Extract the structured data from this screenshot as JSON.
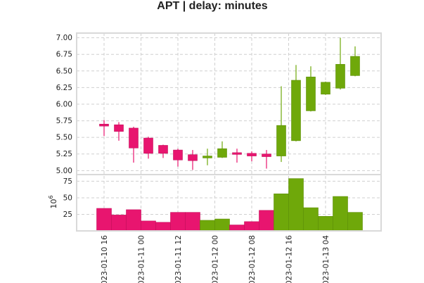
{
  "chart_data": {
    "type": "candlestick",
    "title": "APT | delay: minutes",
    "up_color": "#6fa80a",
    "down_color": "#e8156f",
    "grid": true,
    "price_axis": {
      "ylim": [
        4.94,
        7.07
      ],
      "ticks": [
        "5.00",
        "5.25",
        "5.50",
        "5.75",
        "6.00",
        "6.25",
        "6.50",
        "6.75",
        "7.00"
      ]
    },
    "volume_axis": {
      "ylabel": "10^6",
      "ylim": [
        0,
        85
      ],
      "ticks": [
        "25",
        "50",
        "75"
      ]
    },
    "x_tick_labels": [
      "023-01-10 16",
      "023-01-11 00",
      "023-01-11 12",
      "023-01-12 00",
      "023-01-12 08",
      "023-01-12 16",
      "023-01-13 04"
    ],
    "candles": [
      {
        "open": 5.7,
        "high": 5.76,
        "low": 5.52,
        "close": 5.67,
        "volume": 34
      },
      {
        "open": 5.69,
        "high": 5.73,
        "low": 5.45,
        "close": 5.59,
        "volume": 24
      },
      {
        "open": 5.64,
        "high": 5.66,
        "low": 5.12,
        "close": 5.34,
        "volume": 32
      },
      {
        "open": 5.49,
        "high": 5.51,
        "low": 5.18,
        "close": 5.26,
        "volume": 15
      },
      {
        "open": 5.38,
        "high": 5.39,
        "low": 5.19,
        "close": 5.26,
        "volume": 13
      },
      {
        "open": 5.31,
        "high": 5.33,
        "low": 5.06,
        "close": 5.16,
        "volume": 28
      },
      {
        "open": 5.24,
        "high": 5.31,
        "low": 5.01,
        "close": 5.15,
        "volume": 28
      },
      {
        "open": 5.19,
        "high": 5.33,
        "low": 5.08,
        "close": 5.22,
        "volume": 16
      },
      {
        "open": 5.2,
        "high": 5.44,
        "low": 5.19,
        "close": 5.33,
        "volume": 18
      },
      {
        "open": 5.27,
        "high": 5.33,
        "low": 5.12,
        "close": 5.25,
        "volume": 9
      },
      {
        "open": 5.26,
        "high": 5.29,
        "low": 5.14,
        "close": 5.22,
        "volume": 14
      },
      {
        "open": 5.25,
        "high": 5.31,
        "low": 5.03,
        "close": 5.21,
        "volume": 31
      },
      {
        "open": 5.22,
        "high": 6.27,
        "low": 5.13,
        "close": 5.68,
        "volume": 56
      },
      {
        "open": 5.45,
        "high": 6.59,
        "low": 5.44,
        "close": 6.36,
        "volume": 79
      },
      {
        "open": 5.9,
        "high": 6.57,
        "low": 5.89,
        "close": 6.41,
        "volume": 35
      },
      {
        "open": 6.15,
        "high": 6.34,
        "low": 6.14,
        "close": 6.33,
        "volume": 22
      },
      {
        "open": 6.24,
        "high": 7.0,
        "low": 6.22,
        "close": 6.6,
        "volume": 52
      },
      {
        "open": 6.43,
        "high": 6.87,
        "low": 6.42,
        "close": 6.72,
        "volume": 28
      }
    ]
  }
}
